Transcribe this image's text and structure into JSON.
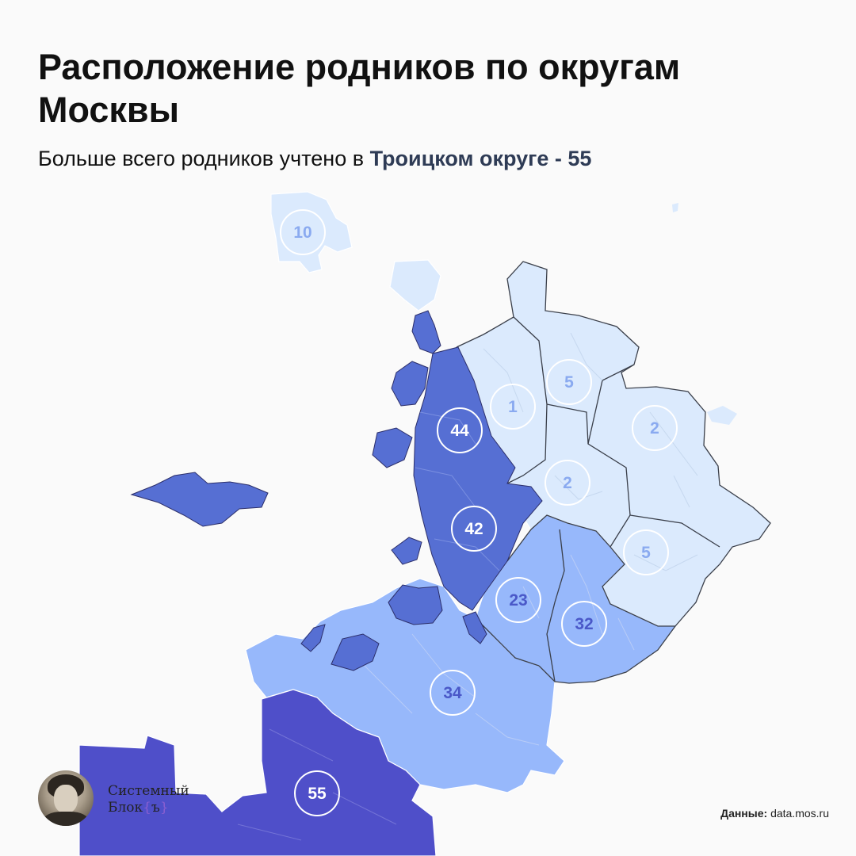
{
  "title": "Расположение родников по округам Москвы",
  "subtitle": {
    "prefix": "Больше всего родников учтено в ",
    "highlight": "Троицком округе - 55"
  },
  "colors": {
    "background": "#fafafa",
    "district_scale": [
      "#dbeafd",
      "#97b8fb",
      "#566fd3",
      "#4f4fc9"
    ],
    "badge_ring": "#ffffff",
    "borders": "#3a3f4a"
  },
  "districts": [
    {
      "id": "zelenogradsky",
      "count": "10"
    },
    {
      "id": "severny",
      "count": "5"
    },
    {
      "id": "severo-zapadny",
      "count": "1"
    },
    {
      "id": "zapadny",
      "count": "44"
    },
    {
      "id": "severo-vostochny",
      "count": "2"
    },
    {
      "id": "tsentralny",
      "count": "2"
    },
    {
      "id": "vostochny-yugo-vostochny",
      "count": "5"
    },
    {
      "id": "zapadny-yugo",
      "count": "42"
    },
    {
      "id": "yugo-zapadny",
      "count": "23"
    },
    {
      "id": "yuzhny",
      "count": "32"
    },
    {
      "id": "novomoskovsky",
      "count": "34"
    },
    {
      "id": "troitsky",
      "count": "55"
    }
  ],
  "logo": {
    "line1": "Системный",
    "line2": "Блок",
    "brace_open": "{",
    "brace_char": "ъ",
    "brace_close": "}"
  },
  "source": {
    "label": "Данные:",
    "value": "data.mos.ru"
  }
}
